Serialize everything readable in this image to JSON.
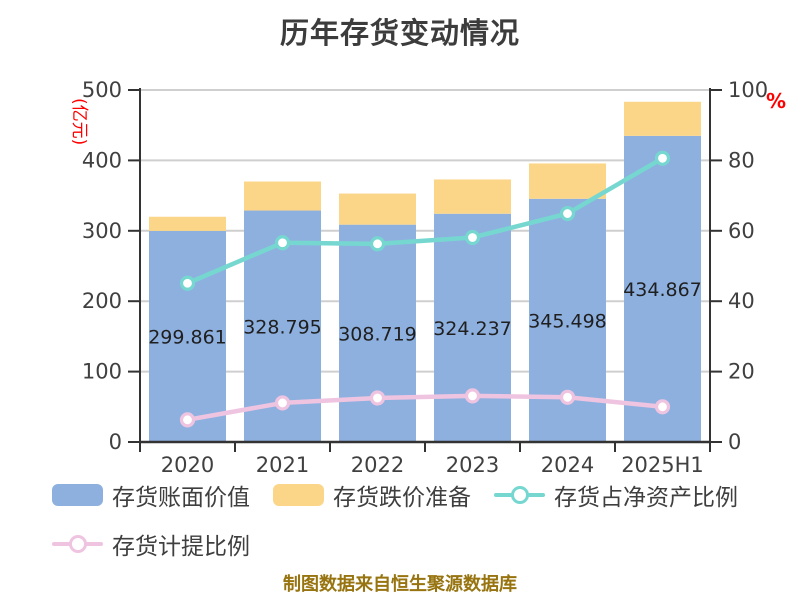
{
  "title": "历年存货变动情况",
  "footer": "制图数据来自恒生聚源数据库",
  "left_axis": {
    "unit_label": "(亿元)",
    "unit_color": "#ff0000",
    "ticks": [
      0,
      100,
      200,
      300,
      400,
      500
    ],
    "max": 500
  },
  "right_axis": {
    "unit_label": "%",
    "unit_color": "#ff0000",
    "ticks": [
      0,
      20,
      40,
      60,
      80,
      100
    ],
    "max": 100
  },
  "chart_data": {
    "type": "bar",
    "subtype": "stacked-bar-with-lines",
    "categories": [
      "2020",
      "2021",
      "2022",
      "2023",
      "2024",
      "2025H1"
    ],
    "series": [
      {
        "id": "inventory-book-value",
        "name": "存货账面价值",
        "type": "bar",
        "stack": true,
        "axis": "left",
        "color": "#8eb0df",
        "values": [
          299.861,
          328.795,
          308.719,
          324.237,
          345.498,
          434.867
        ],
        "labels": [
          "299.861",
          "328.795",
          "308.719",
          "324.237",
          "345.498",
          "434.867"
        ]
      },
      {
        "id": "inventory-depreciation-reserve",
        "name": "存货跌价准备",
        "type": "bar",
        "stack": true,
        "axis": "left",
        "color": "#fbd689",
        "values": [
          20.1,
          41.2,
          44.2,
          48.7,
          50.2,
          48.4
        ]
      },
      {
        "id": "inventory-to-net-assets-ratio",
        "name": "存货占净资产比例",
        "type": "line",
        "axis": "right",
        "color": "#76d7d0",
        "values": [
          45.1,
          56.6,
          56.3,
          58.1,
          64.9,
          80.6
        ]
      },
      {
        "id": "inventory-provision-ratio",
        "name": "存货计提比例",
        "type": "line",
        "axis": "right",
        "color": "#efc4e1",
        "values": [
          6.3,
          11.1,
          12.5,
          13.1,
          12.7,
          10.0
        ]
      }
    ],
    "ylim_left": [
      0,
      500
    ],
    "ylim_right": [
      0,
      100
    ],
    "grid": true,
    "legend_position": "bottom"
  },
  "legend": {
    "rows": [
      [
        {
          "id": "inventory-book-value",
          "marker": "bar",
          "color": "#8eb0df",
          "label": "存货账面价值"
        },
        {
          "id": "inventory-depreciation-reserve",
          "marker": "bar",
          "color": "#fbd689",
          "label": "存货跌价准备"
        },
        {
          "id": "inventory-to-net-assets-ratio",
          "marker": "line",
          "color": "#76d7d0",
          "label": "存货占净资产比例"
        }
      ],
      [
        {
          "id": "inventory-provision-ratio",
          "marker": "line",
          "color": "#efc4e1",
          "label": "存货计提比例"
        }
      ]
    ]
  },
  "style": {
    "axis_color": "#333333",
    "grid_color": "#cfcfcf",
    "text_color": "#404040",
    "value_label_color": "#1f1f1f",
    "marker_fill": "#ffffff"
  }
}
